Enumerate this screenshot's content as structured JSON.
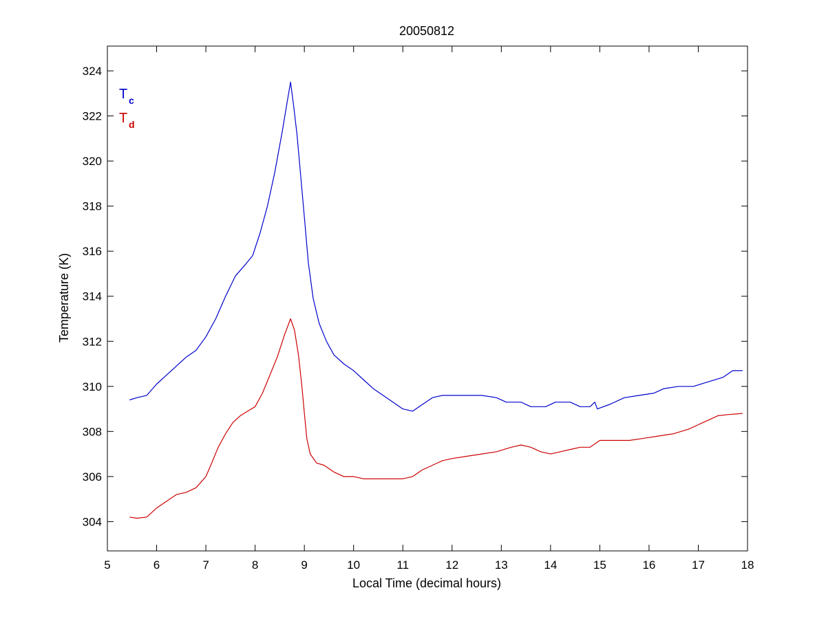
{
  "chart_data": {
    "type": "line",
    "title": "20050812",
    "xlabel": "Local Time (decimal hours)",
    "ylabel": "Temperature (K)",
    "xlim": [
      5,
      18
    ],
    "ylim": [
      302.7,
      325.1
    ],
    "xticks": [
      5,
      6,
      7,
      8,
      9,
      10,
      11,
      12,
      13,
      14,
      15,
      16,
      17,
      18
    ],
    "yticks": [
      304,
      306,
      308,
      310,
      312,
      314,
      316,
      318,
      320,
      322,
      324
    ],
    "grid": false,
    "legend_position": "top-left",
    "series": [
      {
        "name": "T",
        "subscript": "c",
        "color": "#0000cc",
        "points": [
          [
            5.45,
            309.4
          ],
          [
            5.6,
            309.5
          ],
          [
            5.8,
            309.6
          ],
          [
            6.0,
            310.1
          ],
          [
            6.2,
            310.5
          ],
          [
            6.4,
            310.9
          ],
          [
            6.6,
            311.3
          ],
          [
            6.8,
            311.6
          ],
          [
            7.0,
            312.2
          ],
          [
            7.2,
            313.0
          ],
          [
            7.4,
            314.0
          ],
          [
            7.6,
            314.9
          ],
          [
            7.8,
            315.4
          ],
          [
            7.95,
            315.8
          ],
          [
            8.1,
            316.8
          ],
          [
            8.25,
            318.0
          ],
          [
            8.4,
            319.5
          ],
          [
            8.55,
            321.3
          ],
          [
            8.65,
            322.6
          ],
          [
            8.72,
            323.5
          ],
          [
            8.78,
            322.5
          ],
          [
            8.85,
            321.2
          ],
          [
            8.92,
            319.5
          ],
          [
            9.0,
            317.5
          ],
          [
            9.08,
            315.5
          ],
          [
            9.18,
            313.9
          ],
          [
            9.3,
            312.8
          ],
          [
            9.45,
            312.0
          ],
          [
            9.6,
            311.4
          ],
          [
            9.8,
            311.0
          ],
          [
            10.0,
            310.7
          ],
          [
            10.2,
            310.3
          ],
          [
            10.4,
            309.9
          ],
          [
            10.6,
            309.6
          ],
          [
            10.8,
            309.3
          ],
          [
            11.0,
            309.0
          ],
          [
            11.2,
            308.9
          ],
          [
            11.4,
            309.2
          ],
          [
            11.6,
            309.5
          ],
          [
            11.8,
            309.6
          ],
          [
            12.0,
            309.6
          ],
          [
            12.3,
            309.6
          ],
          [
            12.6,
            309.6
          ],
          [
            12.9,
            309.5
          ],
          [
            13.1,
            309.3
          ],
          [
            13.4,
            309.3
          ],
          [
            13.6,
            309.1
          ],
          [
            13.9,
            309.1
          ],
          [
            14.1,
            309.3
          ],
          [
            14.4,
            309.3
          ],
          [
            14.6,
            309.1
          ],
          [
            14.8,
            309.1
          ],
          [
            14.9,
            309.3
          ],
          [
            14.95,
            309.0
          ],
          [
            15.2,
            309.2
          ],
          [
            15.5,
            309.5
          ],
          [
            15.8,
            309.6
          ],
          [
            16.1,
            309.7
          ],
          [
            16.3,
            309.9
          ],
          [
            16.6,
            310.0
          ],
          [
            16.9,
            310.0
          ],
          [
            17.2,
            310.2
          ],
          [
            17.5,
            310.4
          ],
          [
            17.7,
            310.7
          ],
          [
            17.9,
            310.7
          ]
        ]
      },
      {
        "name": "T",
        "subscript": "d",
        "color": "#cc0000",
        "points": [
          [
            5.45,
            304.2
          ],
          [
            5.6,
            304.15
          ],
          [
            5.8,
            304.2
          ],
          [
            6.0,
            304.6
          ],
          [
            6.2,
            304.9
          ],
          [
            6.4,
            305.2
          ],
          [
            6.6,
            305.3
          ],
          [
            6.8,
            305.5
          ],
          [
            7.0,
            306.0
          ],
          [
            7.1,
            306.5
          ],
          [
            7.25,
            307.3
          ],
          [
            7.4,
            307.9
          ],
          [
            7.55,
            308.4
          ],
          [
            7.7,
            308.7
          ],
          [
            7.85,
            308.9
          ],
          [
            8.0,
            309.1
          ],
          [
            8.15,
            309.7
          ],
          [
            8.3,
            310.5
          ],
          [
            8.45,
            311.3
          ],
          [
            8.6,
            312.3
          ],
          [
            8.72,
            313.0
          ],
          [
            8.8,
            312.5
          ],
          [
            8.88,
            311.4
          ],
          [
            8.95,
            310.0
          ],
          [
            9.0,
            308.8
          ],
          [
            9.05,
            307.7
          ],
          [
            9.12,
            307.0
          ],
          [
            9.25,
            306.6
          ],
          [
            9.4,
            306.5
          ],
          [
            9.6,
            306.2
          ],
          [
            9.8,
            306.0
          ],
          [
            10.0,
            306.0
          ],
          [
            10.2,
            305.9
          ],
          [
            10.4,
            305.9
          ],
          [
            10.6,
            305.9
          ],
          [
            10.8,
            305.9
          ],
          [
            11.0,
            305.9
          ],
          [
            11.2,
            306.0
          ],
          [
            11.4,
            306.3
          ],
          [
            11.6,
            306.5
          ],
          [
            11.8,
            306.7
          ],
          [
            12.0,
            306.8
          ],
          [
            12.3,
            306.9
          ],
          [
            12.6,
            307.0
          ],
          [
            12.9,
            307.1
          ],
          [
            13.2,
            307.3
          ],
          [
            13.4,
            307.4
          ],
          [
            13.6,
            307.3
          ],
          [
            13.8,
            307.1
          ],
          [
            14.0,
            307.0
          ],
          [
            14.2,
            307.1
          ],
          [
            14.4,
            307.2
          ],
          [
            14.6,
            307.3
          ],
          [
            14.8,
            307.3
          ],
          [
            15.0,
            307.6
          ],
          [
            15.3,
            307.6
          ],
          [
            15.6,
            307.6
          ],
          [
            15.9,
            307.7
          ],
          [
            16.2,
            307.8
          ],
          [
            16.5,
            307.9
          ],
          [
            16.8,
            308.1
          ],
          [
            17.0,
            308.3
          ],
          [
            17.2,
            308.5
          ],
          [
            17.4,
            308.7
          ],
          [
            17.6,
            308.75
          ],
          [
            17.9,
            308.8
          ]
        ]
      }
    ]
  }
}
